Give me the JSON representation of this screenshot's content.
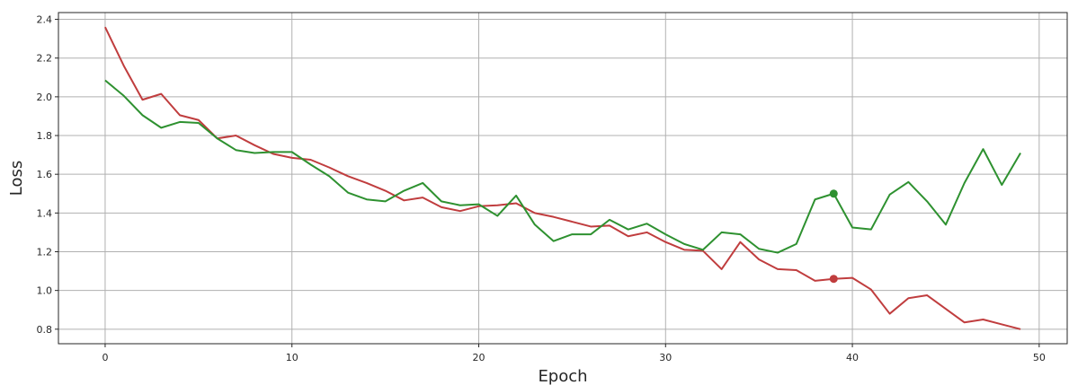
{
  "chart_data": {
    "type": "line",
    "title": "",
    "xlabel": "Epoch",
    "ylabel": "Loss",
    "xlim": [
      -2.5,
      51.5
    ],
    "ylim": [
      0.725,
      2.435
    ],
    "xticks": [
      0,
      10,
      20,
      30,
      40,
      50
    ],
    "yticks": [
      0.8,
      1.0,
      1.2,
      1.4,
      1.6,
      1.8,
      2.0,
      2.2,
      2.4
    ],
    "xtick_labels": [
      "0",
      "10",
      "20",
      "30",
      "40",
      "50"
    ],
    "ytick_labels": [
      "0.8",
      "1.0",
      "1.2",
      "1.4",
      "1.6",
      "1.8",
      "2.0",
      "2.2",
      "2.4"
    ],
    "grid": true,
    "x": [
      0,
      1,
      2,
      3,
      4,
      5,
      6,
      7,
      8,
      9,
      10,
      11,
      12,
      13,
      14,
      15,
      16,
      17,
      18,
      19,
      20,
      21,
      22,
      23,
      24,
      25,
      26,
      27,
      28,
      29,
      30,
      31,
      32,
      33,
      34,
      35,
      36,
      37,
      38,
      39,
      40,
      41,
      42,
      43,
      44,
      45,
      46,
      47,
      48,
      49
    ],
    "series": [
      {
        "color": "#c03d3e",
        "values": [
          2.36,
          2.16,
          1.985,
          2.015,
          1.905,
          1.88,
          1.785,
          1.8,
          1.75,
          1.705,
          1.685,
          1.675,
          1.635,
          1.59,
          1.555,
          1.515,
          1.465,
          1.48,
          1.43,
          1.41,
          1.435,
          1.44,
          1.45,
          1.4,
          1.38,
          1.355,
          1.33,
          1.335,
          1.28,
          1.3,
          1.25,
          1.21,
          1.205,
          1.11,
          1.25,
          1.16,
          1.11,
          1.105,
          1.05,
          1.06,
          1.065,
          1.005,
          0.88,
          0.96,
          0.975,
          0.905,
          0.835,
          0.85,
          0.825,
          0.8
        ],
        "marker": {
          "x": 39,
          "y": 1.06
        }
      },
      {
        "color": "#2e9130",
        "values": [
          2.085,
          2.005,
          1.905,
          1.84,
          1.87,
          1.865,
          1.785,
          1.725,
          1.71,
          1.715,
          1.715,
          1.65,
          1.59,
          1.505,
          1.47,
          1.46,
          1.515,
          1.555,
          1.46,
          1.44,
          1.445,
          1.385,
          1.49,
          1.34,
          1.255,
          1.29,
          1.29,
          1.365,
          1.315,
          1.345,
          1.29,
          1.24,
          1.21,
          1.3,
          1.29,
          1.215,
          1.195,
          1.24,
          1.47,
          1.5,
          1.325,
          1.315,
          1.495,
          1.56,
          1.46,
          1.34,
          1.555,
          1.73,
          1.545,
          1.71
        ],
        "marker": {
          "x": 39,
          "y": 1.5
        }
      }
    ]
  }
}
